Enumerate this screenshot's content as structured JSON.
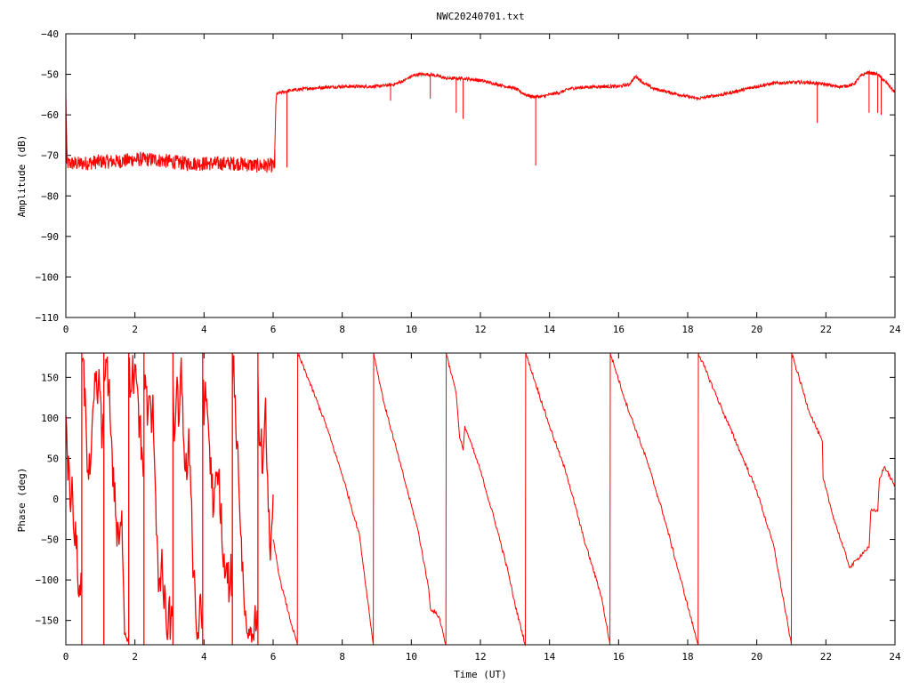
{
  "chart_data": [
    {
      "id": "amplitude",
      "type": "line",
      "title": "NWC20240701.txt",
      "xlabel": "",
      "ylabel": "Amplitude (dB)",
      "xlim": [
        0,
        24
      ],
      "ylim": [
        -110,
        -40
      ],
      "xticks": [
        0,
        2,
        4,
        6,
        8,
        10,
        12,
        14,
        16,
        18,
        20,
        22,
        24
      ],
      "yticks": [
        -110,
        -100,
        -90,
        -80,
        -70,
        -60,
        -50,
        -40
      ],
      "grid": false,
      "color": "#ff0000",
      "noise": [
        {
          "x0": 0.0,
          "x1": 6.05,
          "amp": 1.8
        },
        {
          "x0": 6.05,
          "x1": 24.0,
          "amp": 0.4
        }
      ],
      "series": [
        {
          "x": [
            0,
            0.03,
            0.05,
            0.1,
            0.5,
            1.0,
            1.5,
            2.0,
            2.5,
            3.0,
            3.5,
            4.0,
            4.5,
            5.0,
            5.5,
            6.0,
            6.04,
            6.08,
            6.1,
            6.2,
            6.5,
            7.0,
            7.5,
            8.0,
            8.5,
            9.0,
            9.5,
            9.8,
            10.0,
            10.2,
            10.5,
            10.8,
            11.0,
            11.5,
            12.0,
            12.5,
            13.0,
            13.3,
            13.5,
            13.8,
            14.0,
            14.3,
            14.6,
            15.0,
            15.5,
            16.0,
            16.3,
            16.5,
            16.7,
            17.0,
            17.5,
            18.0,
            18.3,
            18.6,
            19.0,
            19.5,
            20.0,
            20.5,
            21.0,
            21.5,
            22.0,
            22.3,
            22.5,
            22.8,
            23.0,
            23.2,
            23.5,
            23.8,
            24.0
          ],
          "y": [
            -55,
            -70,
            -72,
            -72,
            -72,
            -71.5,
            -71.5,
            -71,
            -71,
            -71.5,
            -72,
            -72,
            -72,
            -72,
            -72.5,
            -72.5,
            -72.5,
            -57,
            -55,
            -54.5,
            -54,
            -53.5,
            -53.2,
            -53,
            -53,
            -53,
            -52.5,
            -51.5,
            -50.5,
            -50,
            -50,
            -50.5,
            -51,
            -51,
            -51.5,
            -52.5,
            -53.5,
            -55,
            -55.5,
            -55.5,
            -55,
            -54.5,
            -53.5,
            -53.2,
            -53,
            -53,
            -52.5,
            -50.5,
            -52,
            -53.5,
            -54.5,
            -55.5,
            -56,
            -55.5,
            -55,
            -54,
            -53,
            -52.2,
            -52,
            -52,
            -52.5,
            -53,
            -53,
            -52.5,
            -50.5,
            -49.5,
            -50,
            -52.5,
            -54.5
          ]
        }
      ],
      "spikes": [
        {
          "x": 0.02,
          "y": -72
        },
        {
          "x": 6.05,
          "y": -73
        },
        {
          "x": 6.4,
          "y": -73
        },
        {
          "x": 9.4,
          "y": -56.5
        },
        {
          "x": 10.55,
          "y": -56
        },
        {
          "x": 11.3,
          "y": -59.5
        },
        {
          "x": 11.5,
          "y": -61
        },
        {
          "x": 13.6,
          "y": -72.5
        },
        {
          "x": 21.75,
          "y": -62
        },
        {
          "x": 23.25,
          "y": -59.5
        },
        {
          "x": 23.5,
          "y": -59.5
        },
        {
          "x": 23.6,
          "y": -60
        }
      ]
    },
    {
      "id": "phase",
      "type": "line",
      "title": "",
      "xlabel": "Time (UT)",
      "ylabel": "Phase (deg)",
      "xlim": [
        0,
        24
      ],
      "ylim": [
        -180,
        180
      ],
      "xticks": [
        0,
        2,
        4,
        6,
        8,
        10,
        12,
        14,
        16,
        18,
        20,
        22,
        24
      ],
      "yticks": [
        -150,
        -100,
        -50,
        0,
        50,
        100,
        150
      ],
      "grid": false,
      "color": "#ff0000",
      "noisy_segment": {
        "x_start": 0.0,
        "x_end": 6.0,
        "step": 0.02,
        "wrap_times": [
          0.45,
          1.1,
          1.82,
          2.25,
          3.1,
          3.95,
          4.8,
          5.55,
          6.0
        ]
      },
      "series": [
        {
          "x": [
            6.0,
            6.2,
            6.5,
            6.7,
            6.71,
            7.0,
            7.5,
            8.0,
            8.5,
            8.9,
            8.91,
            9.2,
            9.7,
            10.2,
            10.5,
            10.55,
            10.8,
            11.0,
            11.01,
            11.3,
            11.4,
            11.45,
            11.5,
            11.55,
            12.0,
            12.5,
            12.8,
            13.0,
            13.3,
            13.31,
            14.0,
            14.5,
            15.0,
            15.5,
            15.75,
            15.76,
            16.2,
            16.8,
            17.3,
            17.8,
            18.3,
            18.31,
            19.0,
            19.5,
            20.0,
            20.5,
            21.0,
            21.01,
            21.5,
            21.9,
            21.92,
            22.2,
            22.5,
            22.7,
            22.9,
            23.1,
            23.25,
            23.3,
            23.5,
            23.55,
            23.7,
            24.0
          ],
          "y": [
            -50,
            -100,
            -150,
            -180,
            180,
            150,
            95,
            30,
            -45,
            -180,
            180,
            120,
            40,
            -40,
            -110,
            -135,
            -145,
            -180,
            180,
            130,
            75,
            70,
            60,
            90,
            35,
            -40,
            -90,
            -130,
            -180,
            180,
            90,
            30,
            -50,
            -120,
            -180,
            180,
            120,
            50,
            -20,
            -100,
            -180,
            180,
            110,
            60,
            10,
            -60,
            -180,
            180,
            110,
            70,
            25,
            -20,
            -60,
            -85,
            -75,
            -65,
            -60,
            -15,
            -15,
            25,
            40,
            15
          ]
        }
      ]
    }
  ]
}
